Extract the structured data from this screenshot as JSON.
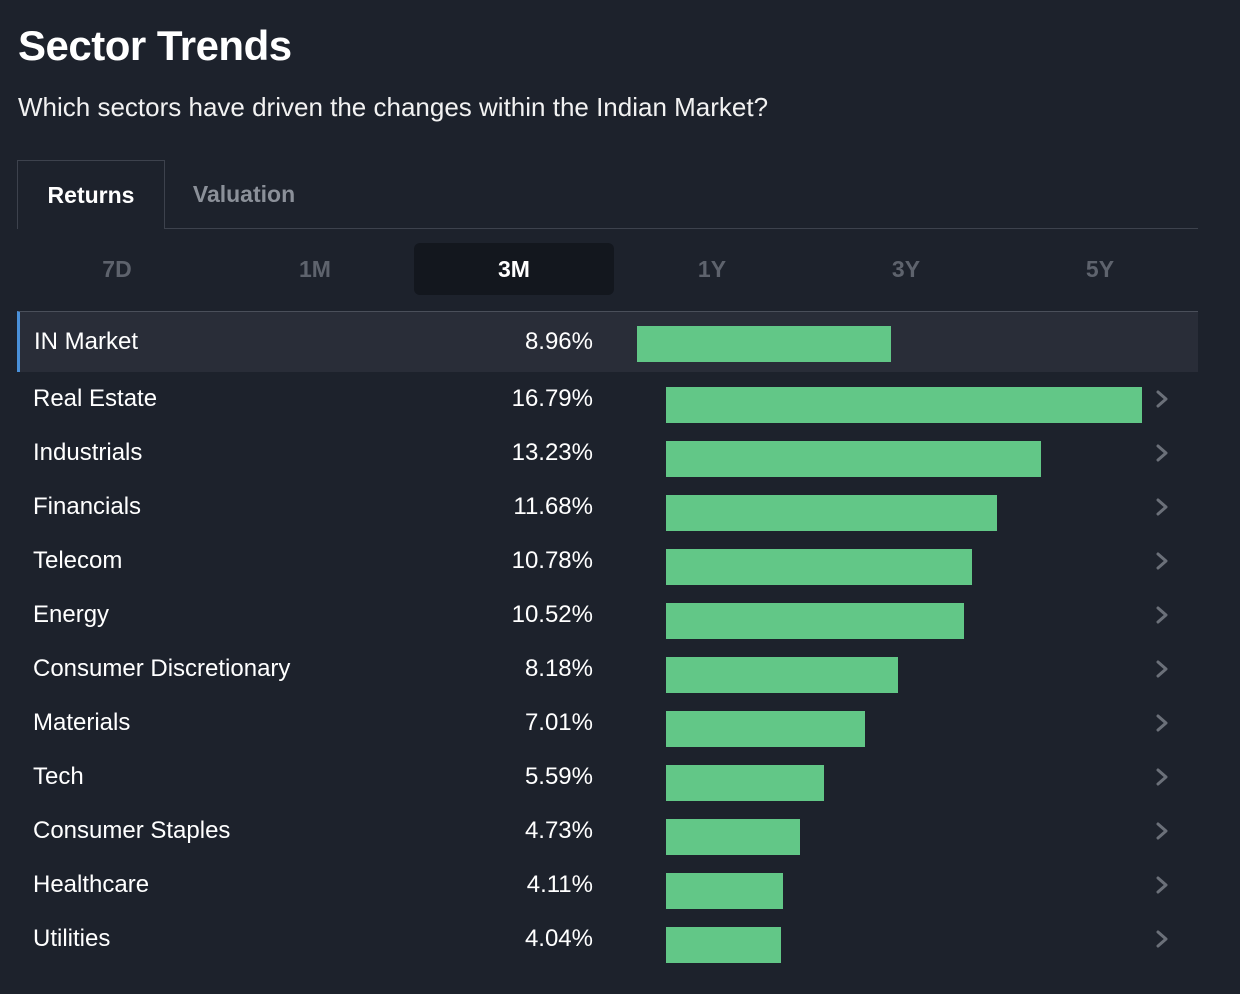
{
  "header": {
    "title": "Sector Trends",
    "subtitle": "Which sectors have driven the changes within the Indian Market?"
  },
  "tabs": [
    {
      "label": "Returns",
      "active": true
    },
    {
      "label": "Valuation",
      "active": false
    }
  ],
  "periods": [
    {
      "label": "7D",
      "selected": false
    },
    {
      "label": "1M",
      "selected": false
    },
    {
      "label": "3M",
      "selected": true
    },
    {
      "label": "1Y",
      "selected": false
    },
    {
      "label": "3Y",
      "selected": false
    },
    {
      "label": "5Y",
      "selected": false
    }
  ],
  "colors": {
    "bar": "#62c787",
    "background": "#1d222c",
    "highlight_row": "#292d38",
    "accent": "#4a90d9"
  },
  "chart_data": {
    "type": "bar",
    "orientation": "horizontal",
    "title": "Sector Trends",
    "categories": [
      "IN Market",
      "Real Estate",
      "Industrials",
      "Financials",
      "Telecom",
      "Energy",
      "Consumer Discretionary",
      "Materials",
      "Tech",
      "Consumer Staples",
      "Healthcare",
      "Utilities"
    ],
    "values": [
      8.96,
      16.79,
      13.23,
      11.68,
      10.78,
      10.52,
      8.18,
      7.01,
      5.59,
      4.73,
      4.11,
      4.04
    ],
    "labels": [
      "8.96%",
      "16.79%",
      "13.23%",
      "11.68%",
      "10.78%",
      "10.52%",
      "8.18%",
      "7.01%",
      "5.59%",
      "4.73%",
      "4.11%",
      "4.04%"
    ],
    "unit": "%",
    "xlim": [
      0,
      16.79
    ],
    "highlighted": "IN Market"
  }
}
